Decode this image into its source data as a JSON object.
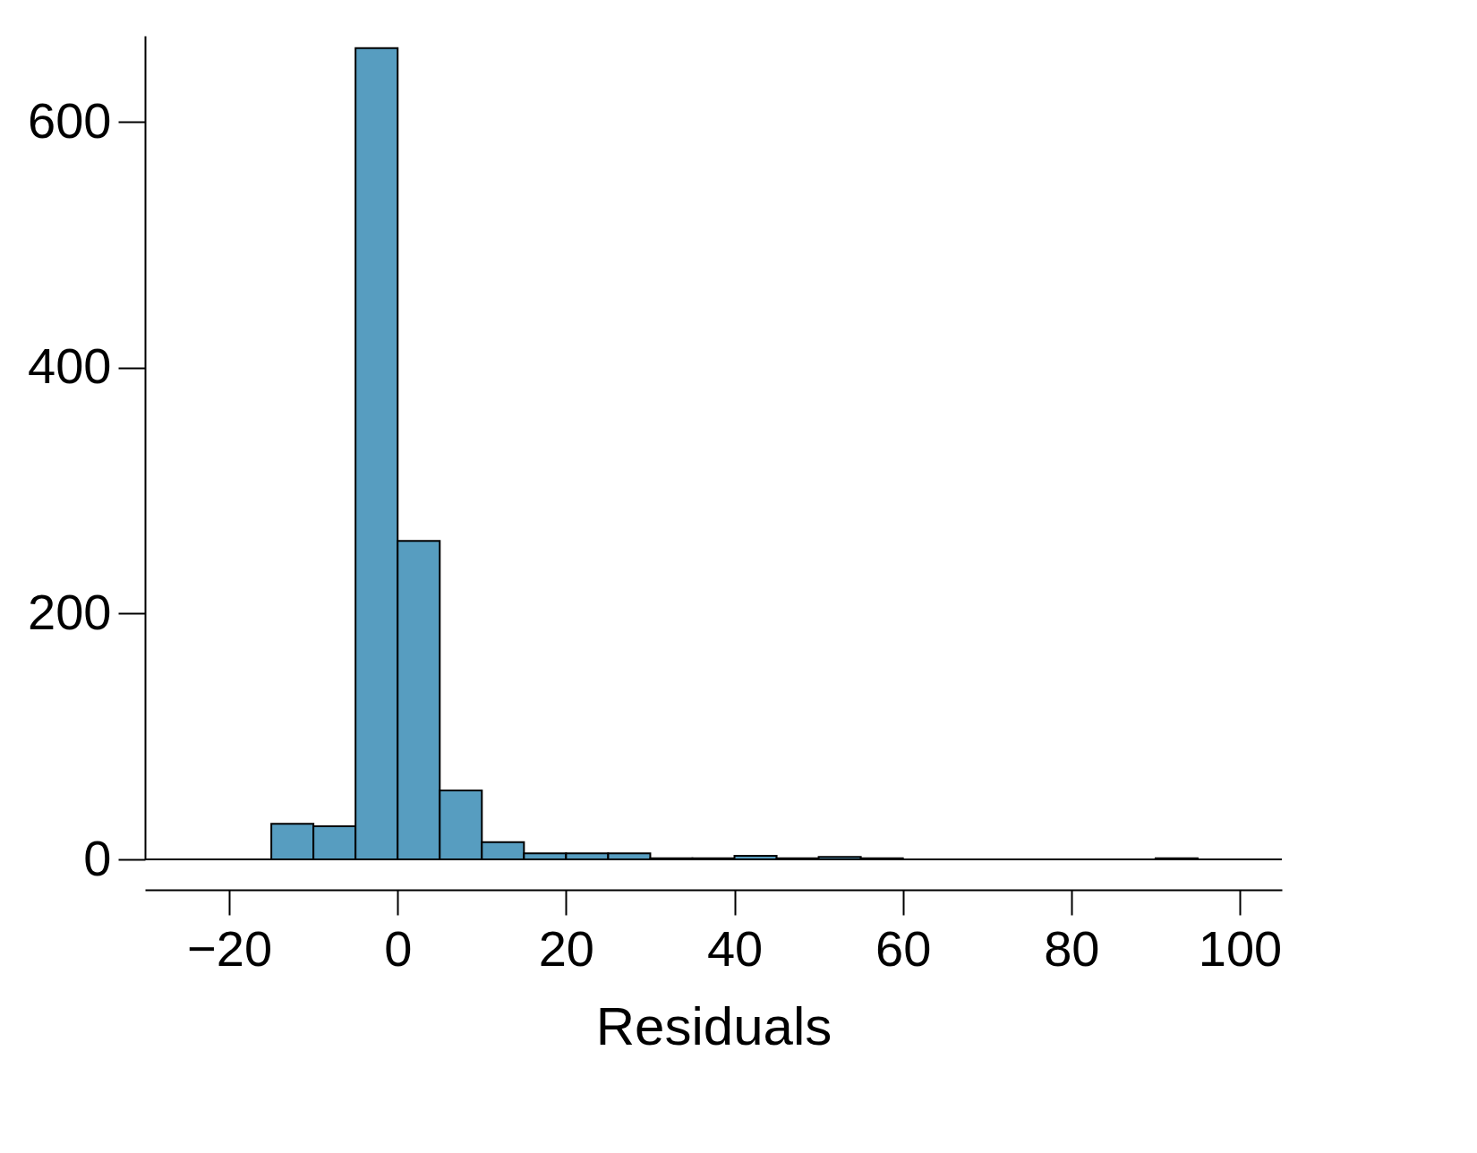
{
  "chart_data": {
    "type": "histogram",
    "xlabel": "Residuals",
    "color": "#579dc0",
    "bins": [
      -30,
      -25,
      -20,
      -15,
      -10,
      -5,
      0,
      5,
      10,
      15,
      20,
      25,
      30,
      35,
      40,
      45,
      50,
      55,
      60,
      65,
      70,
      75,
      80,
      85,
      90,
      95,
      100,
      105
    ],
    "values": [
      0,
      0,
      0,
      29,
      27,
      660,
      259,
      56,
      14,
      5,
      5,
      5,
      1,
      1,
      3,
      1,
      2,
      1,
      0,
      0,
      0,
      0,
      0,
      0,
      1,
      0,
      0
    ],
    "xlim": [
      -30,
      105
    ],
    "xticks": [
      {
        "value": -20,
        "label": "−20"
      },
      0,
      20,
      40,
      60,
      80,
      100
    ],
    "ylim": [
      0,
      670
    ],
    "yticks": [
      0,
      200,
      400,
      600
    ],
    "grid": false
  }
}
